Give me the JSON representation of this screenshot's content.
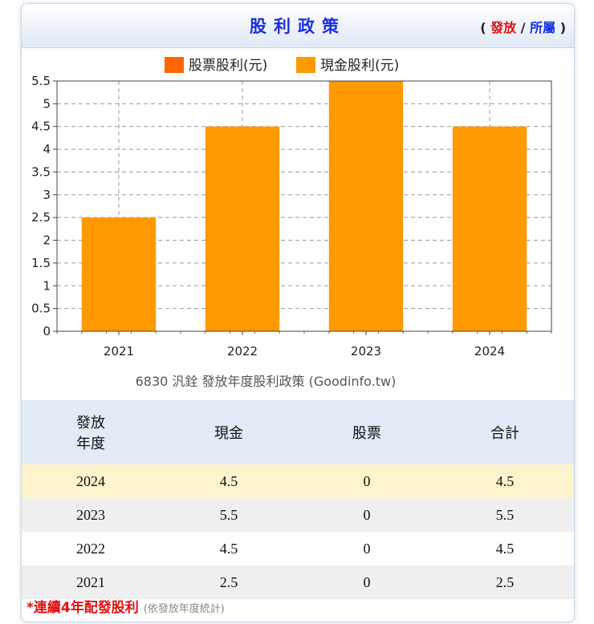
{
  "header": {
    "title": "股利政策",
    "toggle_open": "(",
    "toggle_a": "發放",
    "toggle_sep": "/",
    "toggle_b": "所屬",
    "toggle_close": ")"
  },
  "chart_data": {
    "type": "bar",
    "categories": [
      "2021",
      "2022",
      "2023",
      "2024"
    ],
    "series": [
      {
        "name": "股票股利(元)",
        "color": "#ff6600",
        "values": [
          0,
          0,
          0,
          0
        ]
      },
      {
        "name": "現金股利(元)",
        "color": "#ff9900",
        "values": [
          2.5,
          4.5,
          5.5,
          4.5
        ]
      }
    ],
    "ylim": [
      0,
      5.5
    ],
    "yticks": [
      "0",
      "0.5",
      "1",
      "1.5",
      "2",
      "2.5",
      "3",
      "3.5",
      "4",
      "4.5",
      "5",
      "5.5"
    ],
    "caption": "6830 汎銓 發放年度股利政策 (Goodinfo.tw)",
    "grid": true,
    "legend": "top-center"
  },
  "table": {
    "headers": [
      "發放\n年度",
      "現金",
      "股票",
      "合計"
    ],
    "rows": [
      [
        "2024",
        "4.5",
        "0",
        "4.5"
      ],
      [
        "2023",
        "5.5",
        "0",
        "5.5"
      ],
      [
        "2022",
        "4.5",
        "0",
        "4.5"
      ],
      [
        "2021",
        "2.5",
        "0",
        "2.5"
      ]
    ]
  },
  "footer": {
    "text": "*連續4年配發股利",
    "note": "(依發放年度統計)"
  }
}
